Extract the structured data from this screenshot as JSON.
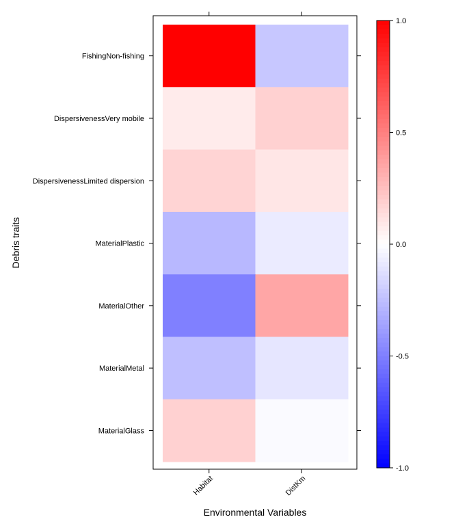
{
  "chart_data": {
    "type": "heatmap",
    "title": "",
    "xlabel": "Environmental Variables",
    "ylabel": "Debris traits",
    "x_categories": [
      "Habitat",
      "DistKm"
    ],
    "y_categories": [
      "FishingNon-fishing",
      "DispersivenessVery mobile",
      "DispersivenessLimited dispersion",
      "MaterialPlastic",
      "MaterialOther",
      "MaterialMetal",
      "MaterialGlass"
    ],
    "values": [
      [
        1.0,
        -0.22
      ],
      [
        0.08,
        0.18
      ],
      [
        0.17,
        0.1
      ],
      [
        -0.28,
        -0.08
      ],
      [
        -0.5,
        0.35
      ],
      [
        -0.25,
        -0.1
      ],
      [
        0.18,
        -0.02
      ]
    ],
    "color_scale": {
      "min": -1.0,
      "max": 1.0,
      "low_color": "#0000ff",
      "mid_color": "#ffffff",
      "high_color": "#ff0000",
      "ticks": [
        1.0,
        0.5,
        0.0,
        -0.5,
        -1.0
      ],
      "tick_labels": [
        "1.0",
        "0.5",
        "0.0",
        "-0.5",
        "-1.0"
      ]
    },
    "legend_position": "right",
    "grid": false
  }
}
